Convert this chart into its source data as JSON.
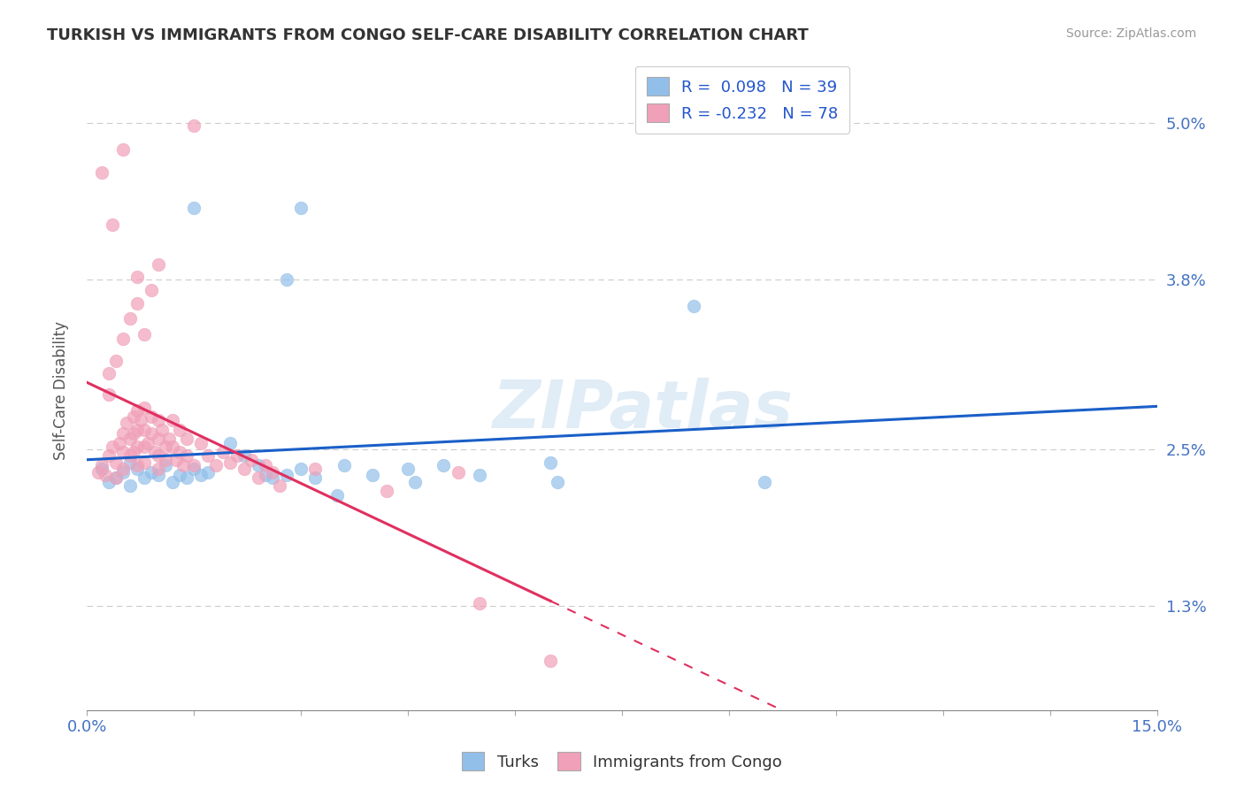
{
  "title": "TURKISH VS IMMIGRANTS FROM CONGO SELF-CARE DISABILITY CORRELATION CHART",
  "source": "Source: ZipAtlas.com",
  "ylabel": "Self-Care Disability",
  "ytick_vals": [
    1.3,
    2.5,
    3.8,
    5.0
  ],
  "xrange": [
    0,
    15
  ],
  "yrange": [
    0.5,
    5.4
  ],
  "legend_turks": "R =  0.098   N = 39",
  "legend_congo": "R = -0.232   N = 78",
  "watermark": "ZIPatlas",
  "turks_color": "#92bfea",
  "congo_color": "#f0a0b8",
  "turks_line_color": "#1a5fc8",
  "congo_line_color": "#e03060",
  "turks_scatter": [
    [
      0.2,
      2.35
    ],
    [
      0.3,
      2.25
    ],
    [
      0.4,
      2.28
    ],
    [
      0.5,
      2.32
    ],
    [
      0.6,
      2.4
    ],
    [
      0.6,
      2.22
    ],
    [
      0.7,
      2.35
    ],
    [
      0.8,
      2.28
    ],
    [
      0.9,
      2.32
    ],
    [
      1.0,
      2.3
    ],
    [
      1.1,
      2.38
    ],
    [
      1.2,
      2.25
    ],
    [
      1.3,
      2.3
    ],
    [
      1.4,
      2.28
    ],
    [
      1.5,
      2.35
    ],
    [
      1.6,
      2.3
    ],
    [
      1.7,
      2.32
    ],
    [
      2.0,
      2.55
    ],
    [
      2.2,
      2.45
    ],
    [
      2.4,
      2.38
    ],
    [
      2.5,
      2.3
    ],
    [
      2.6,
      2.28
    ],
    [
      2.8,
      2.3
    ],
    [
      3.0,
      2.35
    ],
    [
      3.2,
      2.28
    ],
    [
      3.5,
      2.15
    ],
    [
      3.6,
      2.38
    ],
    [
      4.0,
      2.3
    ],
    [
      4.5,
      2.35
    ],
    [
      4.6,
      2.25
    ],
    [
      5.0,
      2.38
    ],
    [
      5.5,
      2.3
    ],
    [
      6.5,
      2.4
    ],
    [
      6.6,
      2.25
    ],
    [
      8.5,
      3.6
    ],
    [
      9.5,
      2.25
    ],
    [
      2.8,
      3.8
    ],
    [
      3.0,
      4.35
    ],
    [
      1.5,
      4.35
    ]
  ],
  "congo_scatter": [
    [
      0.15,
      2.32
    ],
    [
      0.2,
      2.38
    ],
    [
      0.25,
      2.3
    ],
    [
      0.3,
      2.45
    ],
    [
      0.35,
      2.52
    ],
    [
      0.4,
      2.4
    ],
    [
      0.4,
      2.28
    ],
    [
      0.45,
      2.55
    ],
    [
      0.5,
      2.62
    ],
    [
      0.5,
      2.48
    ],
    [
      0.5,
      2.35
    ],
    [
      0.55,
      2.7
    ],
    [
      0.6,
      2.58
    ],
    [
      0.6,
      2.45
    ],
    [
      0.65,
      2.75
    ],
    [
      0.65,
      2.62
    ],
    [
      0.65,
      2.48
    ],
    [
      0.7,
      2.8
    ],
    [
      0.7,
      2.65
    ],
    [
      0.7,
      2.52
    ],
    [
      0.7,
      2.38
    ],
    [
      0.75,
      2.72
    ],
    [
      0.8,
      2.82
    ],
    [
      0.8,
      2.65
    ],
    [
      0.8,
      2.52
    ],
    [
      0.8,
      2.4
    ],
    [
      0.85,
      2.55
    ],
    [
      0.9,
      2.75
    ],
    [
      0.9,
      2.62
    ],
    [
      0.95,
      2.48
    ],
    [
      1.0,
      2.72
    ],
    [
      1.0,
      2.58
    ],
    [
      1.0,
      2.45
    ],
    [
      1.0,
      2.35
    ],
    [
      1.05,
      2.65
    ],
    [
      1.1,
      2.52
    ],
    [
      1.1,
      2.42
    ],
    [
      1.15,
      2.58
    ],
    [
      1.2,
      2.72
    ],
    [
      1.2,
      2.52
    ],
    [
      1.25,
      2.42
    ],
    [
      1.3,
      2.65
    ],
    [
      1.3,
      2.48
    ],
    [
      1.35,
      2.38
    ],
    [
      1.4,
      2.58
    ],
    [
      1.4,
      2.45
    ],
    [
      1.5,
      2.38
    ],
    [
      1.6,
      2.55
    ],
    [
      1.7,
      2.45
    ],
    [
      1.8,
      2.38
    ],
    [
      1.9,
      2.48
    ],
    [
      2.0,
      2.4
    ],
    [
      2.1,
      2.45
    ],
    [
      2.2,
      2.35
    ],
    [
      2.3,
      2.42
    ],
    [
      2.4,
      2.28
    ],
    [
      2.5,
      2.38
    ],
    [
      2.6,
      2.32
    ],
    [
      2.7,
      2.22
    ],
    [
      0.3,
      2.92
    ],
    [
      0.3,
      3.08
    ],
    [
      0.4,
      3.18
    ],
    [
      0.5,
      3.35
    ],
    [
      0.6,
      3.5
    ],
    [
      0.7,
      3.62
    ],
    [
      0.7,
      3.82
    ],
    [
      0.8,
      3.38
    ],
    [
      0.9,
      3.72
    ],
    [
      1.0,
      3.92
    ],
    [
      0.2,
      4.62
    ],
    [
      0.35,
      4.22
    ],
    [
      0.5,
      4.8
    ],
    [
      1.5,
      4.98
    ],
    [
      5.5,
      1.32
    ],
    [
      6.5,
      0.88
    ],
    [
      3.2,
      2.35
    ],
    [
      4.2,
      2.18
    ],
    [
      5.2,
      2.32
    ]
  ],
  "turks_R": 0.098,
  "congo_R": -0.232,
  "turks_N": 39,
  "congo_N": 78
}
